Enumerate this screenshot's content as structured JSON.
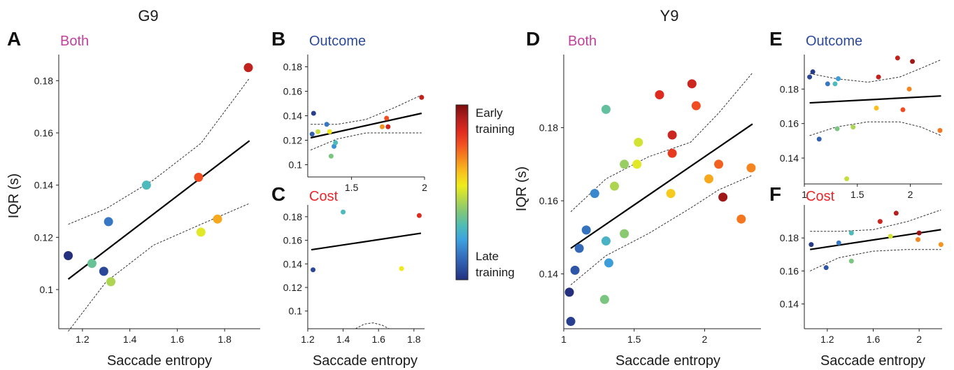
{
  "groups": [
    {
      "title": "G9"
    },
    {
      "title": "Y9"
    }
  ],
  "colorbar": {
    "top_label": [
      "Early",
      "training"
    ],
    "bottom_label": [
      "Late",
      "training"
    ],
    "colors": [
      "#7a0d0d",
      "#b31e1e",
      "#e12b1f",
      "#f25322",
      "#f58b1f",
      "#f8c21d",
      "#eeed1d",
      "#b7d84a",
      "#7dc67b",
      "#4fbcb7",
      "#3ea3df",
      "#3779c4",
      "#2e55a6",
      "#24307e"
    ]
  },
  "chart_data": [
    {
      "panel": "A",
      "title": "Both",
      "title_color": "#c0429c",
      "type": "scatter",
      "xlabel": "Saccade entropy",
      "ylabel": "IQR (s)",
      "xlim": [
        1.1,
        1.95
      ],
      "ylim": [
        0.085,
        0.19
      ],
      "xticks": [
        1.2,
        1.4,
        1.6,
        1.8
      ],
      "xtick_labels": [
        "1.2",
        "1.4",
        "1.6",
        "1.8"
      ],
      "yticks": [
        0.1,
        0.12,
        0.14,
        0.16,
        0.18
      ],
      "ytick_labels": [
        "0.1",
        "0.12",
        "0.14",
        "0.16",
        "0.18"
      ],
      "points": [
        {
          "x": 1.14,
          "y": 0.113,
          "c": 0.0
        },
        {
          "x": 1.24,
          "y": 0.11,
          "c": 0.35
        },
        {
          "x": 1.29,
          "y": 0.107,
          "c": 0.05
        },
        {
          "x": 1.31,
          "y": 0.126,
          "c": 0.15
        },
        {
          "x": 1.32,
          "y": 0.103,
          "c": 0.45
        },
        {
          "x": 1.47,
          "y": 0.14,
          "c": 0.3
        },
        {
          "x": 1.69,
          "y": 0.143,
          "c": 0.78
        },
        {
          "x": 1.7,
          "y": 0.122,
          "c": 0.52
        },
        {
          "x": 1.77,
          "y": 0.127,
          "c": 0.65
        },
        {
          "x": 1.9,
          "y": 0.185,
          "c": 0.9
        }
      ],
      "fit": {
        "x": [
          1.14,
          1.905
        ],
        "y": [
          0.104,
          0.157
        ]
      },
      "ci_upper": {
        "x": [
          1.14,
          1.3,
          1.5,
          1.7,
          1.905
        ],
        "y": [
          0.125,
          0.131,
          0.142,
          0.156,
          0.181
        ]
      },
      "ci_lower": {
        "x": [
          1.14,
          1.3,
          1.5,
          1.7,
          1.905
        ],
        "y": [
          0.084,
          0.103,
          0.117,
          0.125,
          0.133
        ]
      }
    },
    {
      "panel": "B",
      "title": "Outcome",
      "title_color": "#2c4a9b",
      "type": "scatter",
      "xlabel": "",
      "ylabel": "",
      "xlim": [
        1.2,
        2.0
      ],
      "ylim": [
        0.09,
        0.19
      ],
      "xticks": [
        1.5,
        2.0
      ],
      "xtick_labels": [
        "1.5",
        "2"
      ],
      "yticks": [
        0.1,
        0.12,
        0.14,
        0.16,
        0.18
      ],
      "ytick_labels": [
        "0.1",
        "0.12",
        "0.14",
        "0.16",
        "0.18"
      ],
      "points": [
        {
          "x": 1.24,
          "y": 0.142,
          "c": 0.03
        },
        {
          "x": 1.23,
          "y": 0.125,
          "c": 0.1
        },
        {
          "x": 1.27,
          "y": 0.127,
          "c": 0.48
        },
        {
          "x": 1.33,
          "y": 0.133,
          "c": 0.15
        },
        {
          "x": 1.35,
          "y": 0.127,
          "c": 0.55
        },
        {
          "x": 1.36,
          "y": 0.107,
          "c": 0.38
        },
        {
          "x": 1.38,
          "y": 0.115,
          "c": 0.2
        },
        {
          "x": 1.39,
          "y": 0.118,
          "c": 0.3
        },
        {
          "x": 1.71,
          "y": 0.131,
          "c": 0.68
        },
        {
          "x": 1.74,
          "y": 0.138,
          "c": 0.78
        },
        {
          "x": 1.75,
          "y": 0.131,
          "c": 0.88
        },
        {
          "x": 1.98,
          "y": 0.155,
          "c": 0.9
        }
      ],
      "fit": {
        "x": [
          1.22,
          1.98
        ],
        "y": [
          0.122,
          0.142
        ]
      },
      "ci_upper": {
        "x": [
          1.22,
          1.4,
          1.6,
          1.8,
          1.98
        ],
        "y": [
          0.133,
          0.133,
          0.137,
          0.147,
          0.157
        ]
      },
      "ci_lower": {
        "x": [
          1.22,
          1.4,
          1.6,
          1.8,
          1.98
        ],
        "y": [
          0.112,
          0.121,
          0.126,
          0.126,
          0.126
        ]
      }
    },
    {
      "panel": "C",
      "title": "Cost",
      "title_color": "#e8262a",
      "type": "scatter",
      "xlabel": "Saccade entropy",
      "ylabel": "",
      "xlim": [
        1.2,
        1.86
      ],
      "ylim": [
        0.085,
        0.19
      ],
      "xticks": [
        1.2,
        1.4,
        1.6,
        1.8
      ],
      "xtick_labels": [
        "1.2",
        "1.4",
        "1.6",
        "1.8"
      ],
      "yticks": [
        0.1,
        0.12,
        0.14,
        0.16,
        0.18
      ],
      "ytick_labels": [
        "0.1",
        "0.12",
        "0.14",
        "0.16",
        "0.18"
      ],
      "points": [
        {
          "x": 1.23,
          "y": 0.135,
          "c": 0.05
        },
        {
          "x": 1.4,
          "y": 0.184,
          "c": 0.3
        },
        {
          "x": 1.73,
          "y": 0.136,
          "c": 0.55
        },
        {
          "x": 1.83,
          "y": 0.181,
          "c": 0.85
        }
      ],
      "fit": {
        "x": [
          1.22,
          1.84
        ],
        "y": [
          0.152,
          0.166
        ]
      },
      "ci_upper": {
        "x": [],
        "y": []
      },
      "ci_lower": {
        "x": [
          1.47,
          1.52,
          1.57,
          1.62,
          1.66
        ],
        "y": [
          0.085,
          0.089,
          0.09,
          0.088,
          0.085
        ]
      }
    },
    {
      "panel": "D",
      "title": "Both",
      "title_color": "#c0429c",
      "type": "scatter",
      "xlabel": "Saccade entropy",
      "ylabel": "IQR (s)",
      "xlim": [
        1.0,
        2.4
      ],
      "ylim": [
        0.125,
        0.2
      ],
      "xticks": [
        1.0,
        1.5,
        2.0
      ],
      "xtick_labels": [
        "1",
        "1.5",
        "2"
      ],
      "yticks": [
        0.14,
        0.16,
        0.18
      ],
      "ytick_labels": [
        "0.14",
        "0.16",
        "0.18"
      ],
      "points": [
        {
          "x": 1.05,
          "y": 0.127,
          "c": 0.03
        },
        {
          "x": 1.04,
          "y": 0.135,
          "c": 0.0
        },
        {
          "x": 1.08,
          "y": 0.141,
          "c": 0.08
        },
        {
          "x": 1.11,
          "y": 0.147,
          "c": 0.12
        },
        {
          "x": 1.16,
          "y": 0.152,
          "c": 0.14
        },
        {
          "x": 1.22,
          "y": 0.162,
          "c": 0.18
        },
        {
          "x": 1.29,
          "y": 0.133,
          "c": 0.38
        },
        {
          "x": 1.3,
          "y": 0.149,
          "c": 0.28
        },
        {
          "x": 1.3,
          "y": 0.185,
          "c": 0.34
        },
        {
          "x": 1.32,
          "y": 0.143,
          "c": 0.22
        },
        {
          "x": 1.36,
          "y": 0.164,
          "c": 0.45
        },
        {
          "x": 1.43,
          "y": 0.151,
          "c": 0.4
        },
        {
          "x": 1.43,
          "y": 0.17,
          "c": 0.42
        },
        {
          "x": 1.52,
          "y": 0.17,
          "c": 0.52
        },
        {
          "x": 1.53,
          "y": 0.176,
          "c": 0.5
        },
        {
          "x": 1.68,
          "y": 0.189,
          "c": 0.85
        },
        {
          "x": 1.76,
          "y": 0.162,
          "c": 0.6
        },
        {
          "x": 1.77,
          "y": 0.173,
          "c": 0.82
        },
        {
          "x": 1.77,
          "y": 0.178,
          "c": 0.88
        },
        {
          "x": 1.91,
          "y": 0.192,
          "c": 0.88
        },
        {
          "x": 1.94,
          "y": 0.186,
          "c": 0.78
        },
        {
          "x": 2.03,
          "y": 0.166,
          "c": 0.65
        },
        {
          "x": 2.1,
          "y": 0.17,
          "c": 0.75
        },
        {
          "x": 2.13,
          "y": 0.161,
          "c": 0.95
        },
        {
          "x": 2.26,
          "y": 0.155,
          "c": 0.72
        },
        {
          "x": 2.33,
          "y": 0.169,
          "c": 0.7
        }
      ],
      "fit": {
        "x": [
          1.05,
          2.34
        ],
        "y": [
          0.147,
          0.181
        ]
      },
      "ci_upper": {
        "x": [
          1.05,
          1.3,
          1.6,
          1.9,
          2.1,
          2.34
        ],
        "y": [
          0.157,
          0.166,
          0.172,
          0.176,
          0.184,
          0.195
        ]
      },
      "ci_lower": {
        "x": [
          1.05,
          1.3,
          1.6,
          1.9,
          2.1,
          2.34
        ],
        "y": [
          0.137,
          0.145,
          0.151,
          0.158,
          0.163,
          0.167
        ]
      }
    },
    {
      "panel": "E",
      "title": "Outcome",
      "title_color": "#2c4a9b",
      "type": "scatter",
      "xlabel": "",
      "ylabel": "",
      "xlim": [
        1.0,
        2.3
      ],
      "ylim": [
        0.125,
        0.2
      ],
      "xticks": [
        1.0,
        1.5,
        2.0
      ],
      "xtick_labels": [
        "1",
        "1.5",
        "2"
      ],
      "yticks": [
        0.14,
        0.16,
        0.18
      ],
      "ytick_labels": [
        "0.14",
        "0.16",
        "0.18"
      ],
      "points": [
        {
          "x": 1.05,
          "y": 0.187,
          "c": 0.05
        },
        {
          "x": 1.08,
          "y": 0.19,
          "c": 0.02
        },
        {
          "x": 1.14,
          "y": 0.151,
          "c": 0.1
        },
        {
          "x": 1.22,
          "y": 0.183,
          "c": 0.15
        },
        {
          "x": 1.29,
          "y": 0.183,
          "c": 0.3
        },
        {
          "x": 1.32,
          "y": 0.186,
          "c": 0.22
        },
        {
          "x": 1.31,
          "y": 0.157,
          "c": 0.38
        },
        {
          "x": 1.4,
          "y": 0.128,
          "c": 0.48
        },
        {
          "x": 1.46,
          "y": 0.158,
          "c": 0.45
        },
        {
          "x": 1.68,
          "y": 0.169,
          "c": 0.62
        },
        {
          "x": 1.7,
          "y": 0.187,
          "c": 0.9
        },
        {
          "x": 1.88,
          "y": 0.198,
          "c": 0.9
        },
        {
          "x": 1.93,
          "y": 0.168,
          "c": 0.78
        },
        {
          "x": 1.99,
          "y": 0.18,
          "c": 0.7
        },
        {
          "x": 2.02,
          "y": 0.196,
          "c": 0.95
        },
        {
          "x": 2.28,
          "y": 0.156,
          "c": 0.72
        }
      ],
      "fit": {
        "x": [
          1.05,
          2.29
        ],
        "y": [
          0.172,
          0.176
        ]
      },
      "ci_upper": {
        "x": [
          1.05,
          1.3,
          1.6,
          1.9,
          2.1,
          2.29
        ],
        "y": [
          0.189,
          0.186,
          0.184,
          0.187,
          0.192,
          0.197
        ]
      },
      "ci_lower": {
        "x": [
          1.05,
          1.3,
          1.6,
          1.9,
          2.1,
          2.29
        ],
        "y": [
          0.153,
          0.158,
          0.161,
          0.161,
          0.158,
          0.153
        ]
      }
    },
    {
      "panel": "F",
      "title": "Cost",
      "title_color": "#e8262a",
      "type": "scatter",
      "xlabel": "Saccade entropy",
      "ylabel": "",
      "xlim": [
        1.0,
        2.2
      ],
      "ylim": [
        0.125,
        0.2
      ],
      "xticks": [
        1.2,
        1.6,
        2.0
      ],
      "xtick_labels": [
        "1.2",
        "1.6",
        "2"
      ],
      "yticks": [
        0.14,
        0.16,
        0.18
      ],
      "ytick_labels": [
        "0.14",
        "0.16",
        "0.18"
      ],
      "points": [
        {
          "x": 1.06,
          "y": 0.176,
          "c": 0.02
        },
        {
          "x": 1.19,
          "y": 0.162,
          "c": 0.08
        },
        {
          "x": 1.3,
          "y": 0.177,
          "c": 0.15
        },
        {
          "x": 1.41,
          "y": 0.183,
          "c": 0.3
        },
        {
          "x": 1.41,
          "y": 0.166,
          "c": 0.38
        },
        {
          "x": 1.66,
          "y": 0.19,
          "c": 0.88
        },
        {
          "x": 1.75,
          "y": 0.181,
          "c": 0.5
        },
        {
          "x": 1.8,
          "y": 0.195,
          "c": 0.92
        },
        {
          "x": 1.99,
          "y": 0.179,
          "c": 0.7
        },
        {
          "x": 2.0,
          "y": 0.183,
          "c": 0.96
        },
        {
          "x": 2.19,
          "y": 0.176,
          "c": 0.68
        }
      ],
      "fit": {
        "x": [
          1.05,
          2.19
        ],
        "y": [
          0.173,
          0.185
        ]
      },
      "ci_upper": {
        "x": [
          1.05,
          1.3,
          1.6,
          1.9,
          2.19
        ],
        "y": [
          0.184,
          0.184,
          0.185,
          0.19,
          0.197
        ]
      },
      "ci_lower": {
        "x": [
          1.05,
          1.3,
          1.6,
          1.9,
          2.19
        ],
        "y": [
          0.16,
          0.168,
          0.172,
          0.173,
          0.173
        ]
      }
    }
  ]
}
